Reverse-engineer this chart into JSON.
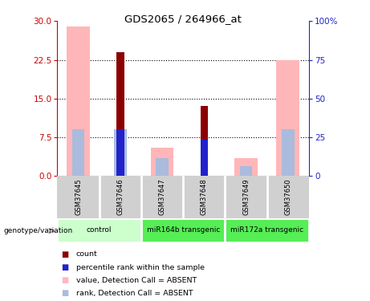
{
  "title": "GDS2065 / 264966_at",
  "samples": [
    "GSM37645",
    "GSM37646",
    "GSM37647",
    "GSM37648",
    "GSM37649",
    "GSM37650"
  ],
  "groups": [
    {
      "label": "control",
      "indices": [
        0,
        1
      ],
      "color": "#ccffcc"
    },
    {
      "label": "miR164b transgenic",
      "indices": [
        2,
        3
      ],
      "color": "#66ee66"
    },
    {
      "label": "miR172a transgenic",
      "indices": [
        4,
        5
      ],
      "color": "#66ee66"
    }
  ],
  "pink_bar_heights": [
    29.0,
    0.0,
    5.5,
    0.0,
    3.5,
    22.5
  ],
  "dark_red_bar_heights": [
    0.0,
    24.0,
    0.0,
    13.5,
    0.0,
    0.0
  ],
  "blue_bar_heights": [
    0.0,
    9.0,
    0.0,
    7.0,
    0.0,
    0.0
  ],
  "light_blue_bar_heights": [
    9.0,
    9.0,
    3.5,
    0.0,
    2.0,
    9.0
  ],
  "ylim_left": [
    0,
    30
  ],
  "ylim_right": [
    0,
    100
  ],
  "yticks_left": [
    0,
    7.5,
    15,
    22.5,
    30
  ],
  "yticks_right": [
    0,
    25,
    50,
    75,
    100
  ],
  "ytick_labels_right": [
    "0",
    "25",
    "50",
    "75",
    "100%"
  ],
  "left_axis_color": "#cc0000",
  "right_axis_color": "#2222cc",
  "legend_items": [
    {
      "label": "count",
      "color": "#8b0000"
    },
    {
      "label": "percentile rank within the sample",
      "color": "#2222cc"
    },
    {
      "label": "value, Detection Call = ABSENT",
      "color": "#ffb6c1"
    },
    {
      "label": "rank, Detection Call = ABSENT",
      "color": "#aabbdd"
    }
  ],
  "pink_color": "#ffb6b8",
  "dark_red_color": "#8b0000",
  "blue_color": "#2222cc",
  "light_blue_color": "#aabbdd",
  "group_color_light": "#ccffcc",
  "group_color_mid": "#55ee55",
  "sample_box_color": "#d0d0d0"
}
